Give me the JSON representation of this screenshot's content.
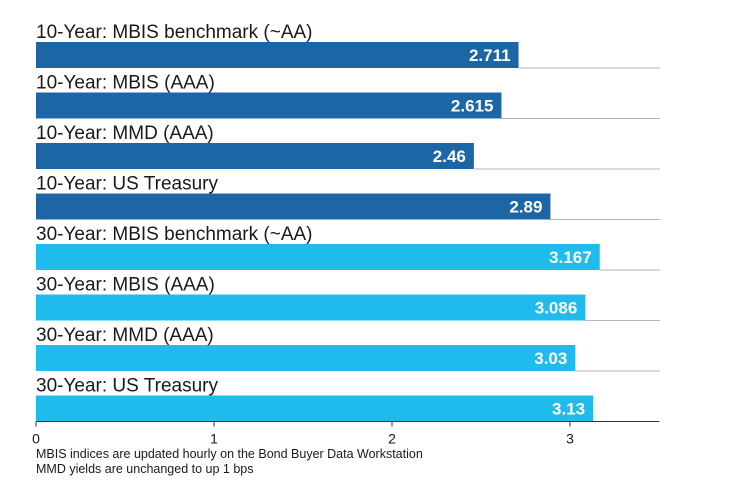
{
  "colors": {
    "ten_year": "#1c66a6",
    "thirty_year": "#1fbbec",
    "axis": "#333333",
    "separator": "#b5b5b5"
  },
  "chart_data": {
    "type": "bar",
    "orientation": "horizontal",
    "categories": [
      "10-Year: MBIS benchmark (~AA)",
      "10-Year: MBIS (AAA)",
      "10-Year: MMD (AAA)",
      "10-Year: US Treasury",
      "30-Year: MBIS benchmark (~AA)",
      "30-Year: MBIS (AAA)",
      "30-Year: MMD (AAA)",
      "30-Year: US Treasury"
    ],
    "values": [
      2.711,
      2.615,
      2.46,
      2.89,
      3.167,
      3.086,
      3.03,
      3.13
    ],
    "value_labels": [
      "2.711",
      "2.615",
      "2.46",
      "2.89",
      "3.167",
      "3.086",
      "3.03",
      "3.13"
    ],
    "bar_colors": [
      "#1c66a6",
      "#1c66a6",
      "#1c66a6",
      "#1c66a6",
      "#1fbbec",
      "#1fbbec",
      "#1fbbec",
      "#1fbbec"
    ],
    "xlim": [
      0,
      3.5
    ],
    "xticks": [
      0,
      1,
      2,
      3
    ],
    "xtick_labels": [
      "0",
      "1",
      "2",
      "3"
    ],
    "grid": false,
    "notes": [
      "MBIS indices are updated hourly on the Bond Buyer Data Workstation",
      "MMD yields are unchanged to up 1 bps"
    ]
  }
}
